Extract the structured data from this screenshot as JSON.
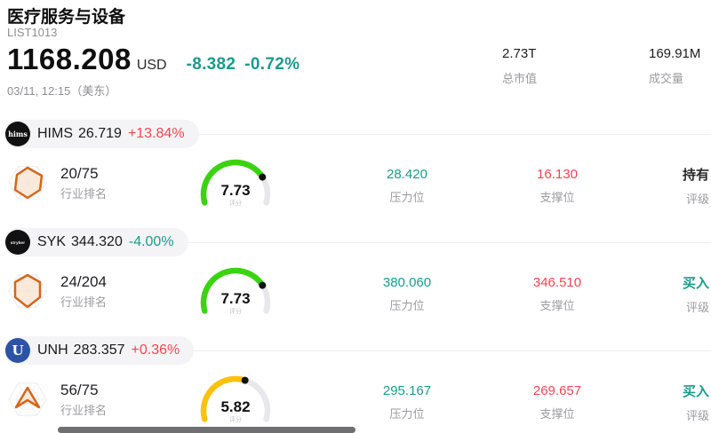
{
  "header": {
    "title": "医疗服务与设备",
    "list_id": "LIST1013",
    "price": "1168.208",
    "currency": "USD",
    "change_abs": "-8.382",
    "change_pct": "-0.72%",
    "change_color": "#189c8c",
    "timestamp": "03/11, 12:15（美东）",
    "stats": [
      {
        "value": "2.73T",
        "label": "总市值"
      },
      {
        "value": "169.91M",
        "label": "成交量"
      }
    ]
  },
  "labels": {
    "rank": "行业排名",
    "score": "评分",
    "pressure": "压力位",
    "support": "支撑位",
    "rating": "评级"
  },
  "colors": {
    "up_red": "#fa4350",
    "down_teal": "#189c8c",
    "pressure_value": "#189c8c",
    "support_value": "#fa4350",
    "gauge_track": "#e7e7ec",
    "gauge_dot": "#111111"
  },
  "stocks": [
    {
      "logo_text": "hims",
      "logo_bg": "#111111",
      "ticker": "HIMS",
      "price": "26.719",
      "change": "+13.84%",
      "change_color": "#fa4350",
      "rank": "20/75",
      "score": "7.73",
      "score_max": 10,
      "gauge_color": "#3bd311",
      "pressure": "28.420",
      "support": "16.130",
      "rating": "持有",
      "rating_color": "#2b2b2b"
    },
    {
      "logo_text": "stryker",
      "logo_bg": "#111111",
      "ticker": "SYK",
      "price": "344.320",
      "change": "-4.00%",
      "change_color": "#189c8c",
      "rank": "24/204",
      "score": "7.73",
      "score_max": 10,
      "gauge_color": "#3bd311",
      "pressure": "380.060",
      "support": "346.510",
      "rating": "买入",
      "rating_color": "#189c8c"
    },
    {
      "logo_text": "U",
      "logo_bg": "#2d53a8",
      "ticker": "UNH",
      "price": "283.357",
      "change": "+0.36%",
      "change_color": "#fa4350",
      "rank": "56/75",
      "score": "5.82",
      "score_max": 10,
      "gauge_color": "#fdc10e",
      "pressure": "295.167",
      "support": "269.657",
      "rating": "买入",
      "rating_color": "#189c8c"
    }
  ]
}
